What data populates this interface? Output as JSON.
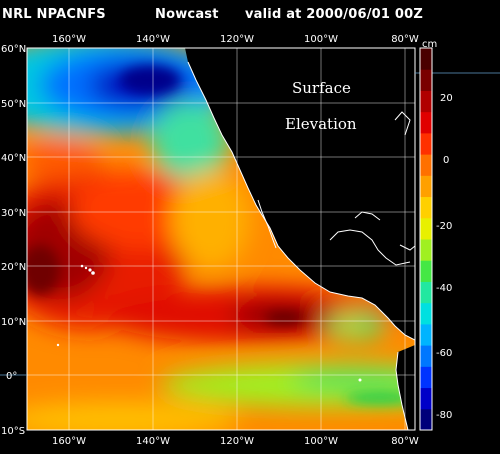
{
  "header": {
    "model": "NRL NPACNFS",
    "product": "Nowcast",
    "valid": "valid at 2000/06/01 00Z"
  },
  "map": {
    "title_line1": "Surface",
    "title_line2": "Elevation",
    "lon_range": [
      -170,
      -78
    ],
    "lat_range": [
      -10,
      60
    ],
    "lon_ticks": [
      "160°W",
      "140°W",
      "120°W",
      "100°W",
      "80°W"
    ],
    "lat_ticks": [
      "60°N",
      "50°N",
      "40°N",
      "30°N",
      "20°N",
      "10°N",
      "0°",
      "10°S"
    ]
  },
  "colorbar": {
    "unit": "cm",
    "range": [
      -90,
      40
    ],
    "ticks": [
      "20",
      "0",
      "-20",
      "-40",
      "-60",
      "-80"
    ],
    "colors": [
      "#00007a",
      "#0000c8",
      "#0033ff",
      "#0077ff",
      "#00b4ff",
      "#00e0e0",
      "#22e8a0",
      "#44e844",
      "#a0f020",
      "#e8f000",
      "#ffd000",
      "#ffa000",
      "#ff7000",
      "#ff3000",
      "#e00000",
      "#b00000",
      "#7a0000",
      "#4a0000"
    ]
  },
  "field_colors": {
    "deep_low": "#0000a0",
    "low": "#0050ff",
    "mid_low": "#00c8e0",
    "mid": "#60e860",
    "mid_high": "#e8f000",
    "high": "#ffa000",
    "very_high": "#ff3000",
    "peak": "#900000",
    "land": "#000000",
    "coast": "#ffffff"
  }
}
